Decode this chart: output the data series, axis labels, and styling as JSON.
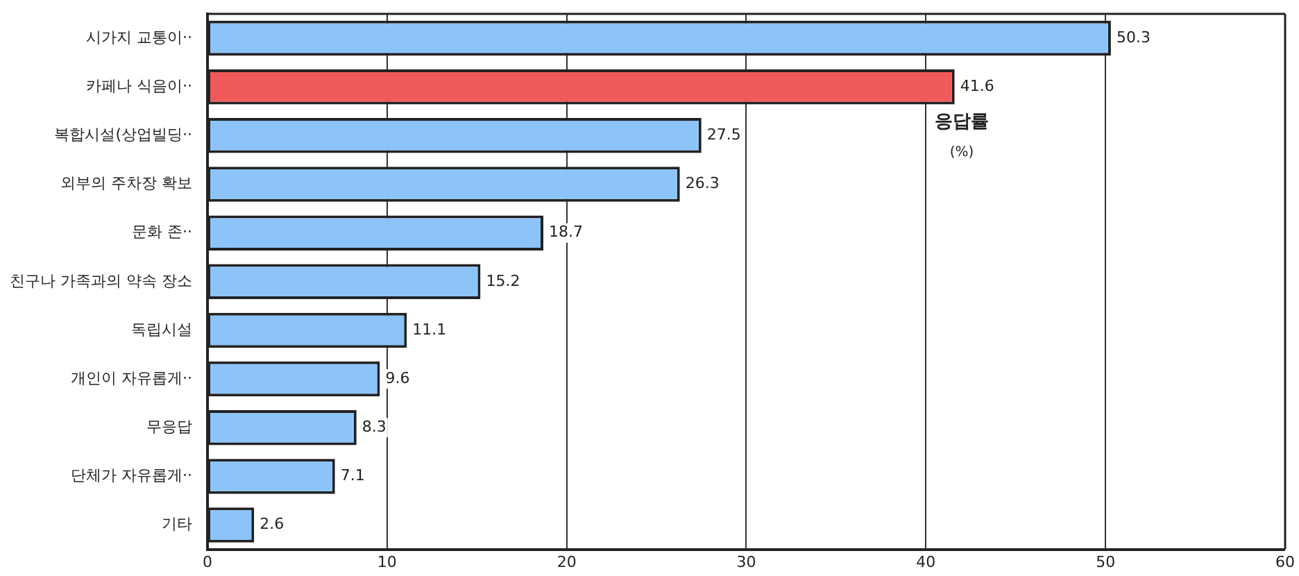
{
  "chart_data": {
    "type": "bar",
    "orientation": "horizontal",
    "categories": [
      "시가지 교통이··",
      "카페나 식음이··",
      "복합시설(상업빌딩··",
      "외부의 주차장 확보",
      "문화 존··",
      "친구나 가족과의 약속 장소",
      "독립시설",
      "개인이 자유롭게··",
      "무응답",
      "단체가 자유롭게··",
      "기타"
    ],
    "values": [
      50.3,
      41.6,
      27.5,
      26.3,
      18.7,
      15.2,
      11.1,
      9.6,
      8.3,
      7.1,
      2.6
    ],
    "colors": [
      "#8cc4fa",
      "#f05a5a",
      "#8cc4fa",
      "#8cc4fa",
      "#8cc4fa",
      "#8cc4fa",
      "#8cc4fa",
      "#8cc4fa",
      "#8cc4fa",
      "#8cc4fa",
      "#8cc4fa"
    ],
    "xlim": [
      0,
      60
    ],
    "xticks": [
      0,
      10,
      20,
      30,
      40,
      50,
      60
    ],
    "grid": "x",
    "data_labels": true,
    "annotations": [
      "응답률",
      "(%)"
    ]
  }
}
